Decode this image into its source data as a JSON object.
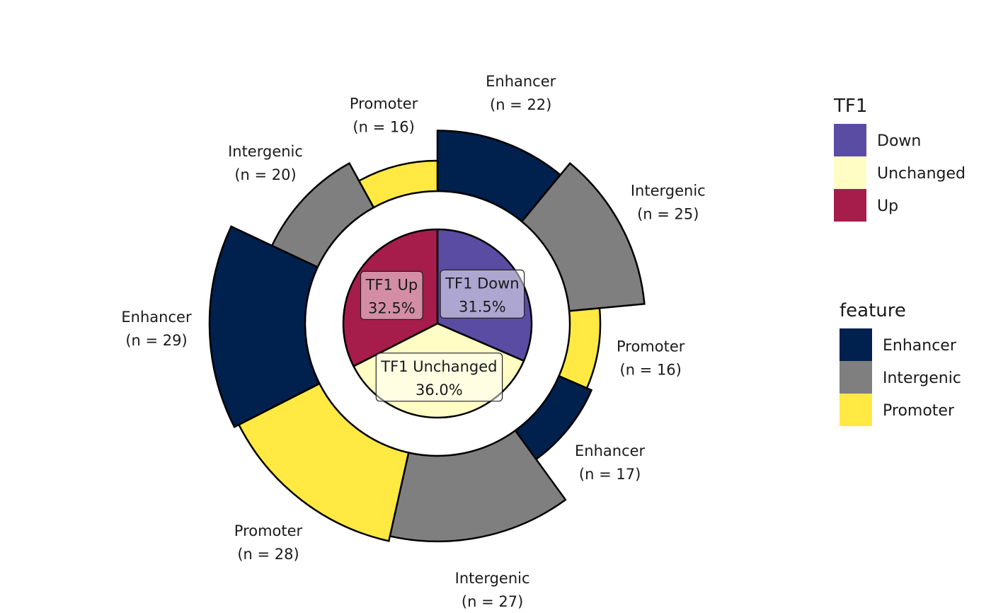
{
  "chart_data": {
    "type": "pie",
    "subtype": "pie-donut",
    "inner": {
      "legend_title": "TF1",
      "categories": [
        {
          "key": "Down",
          "label": "TF1 Down",
          "percent_label": "31.5%",
          "value": 31.5,
          "color": "#5A4CA2"
        },
        {
          "key": "Unchanged",
          "label": "TF1 Unchanged",
          "percent_label": "36.0%",
          "value": 36.0,
          "color": "#FFFDC4"
        },
        {
          "key": "Up",
          "label": "TF1 Up",
          "percent_label": "32.5%",
          "value": 32.5,
          "color": "#A61C4B"
        }
      ]
    },
    "outer": {
      "legend_title": "feature",
      "feature_colors": {
        "Enhancer": "#00204D",
        "Intergenic": "#7F7F7F",
        "Promoter": "#FFE942"
      },
      "segments": [
        {
          "group": "Down",
          "feature": "Enhancer",
          "n": 22,
          "label": "Enhancer",
          "count_label": "(n = 22)"
        },
        {
          "group": "Down",
          "feature": "Intergenic",
          "n": 25,
          "label": "Intergenic",
          "count_label": "(n = 25)"
        },
        {
          "group": "Down",
          "feature": "Promoter",
          "n": 16,
          "label": "Promoter",
          "count_label": "(n = 16)"
        },
        {
          "group": "Unchanged",
          "feature": "Enhancer",
          "n": 17,
          "label": "Enhancer",
          "count_label": "(n = 17)"
        },
        {
          "group": "Unchanged",
          "feature": "Intergenic",
          "n": 27,
          "label": "Intergenic",
          "count_label": "(n = 27)"
        },
        {
          "group": "Unchanged",
          "feature": "Promoter",
          "n": 28,
          "label": "Promoter",
          "count_label": "(n = 28)"
        },
        {
          "group": "Up",
          "feature": "Enhancer",
          "n": 29,
          "label": "Enhancer",
          "count_label": "(n = 29)"
        },
        {
          "group": "Up",
          "feature": "Intergenic",
          "n": 20,
          "label": "Intergenic",
          "count_label": "(n = 20)"
        },
        {
          "group": "Up",
          "feature": "Promoter",
          "n": 16,
          "label": "Promoter",
          "count_label": "(n = 16)"
        }
      ]
    },
    "legends": [
      {
        "title": "TF1",
        "items": [
          {
            "label": "Down",
            "color": "#5A4CA2"
          },
          {
            "label": "Unchanged",
            "color": "#FFFDC4"
          },
          {
            "label": "Up",
            "color": "#A61C4B"
          }
        ]
      },
      {
        "title": "feature",
        "items": [
          {
            "label": "Enhancer",
            "color": "#00204D"
          },
          {
            "label": "Intergenic",
            "color": "#7F7F7F"
          },
          {
            "label": "Promoter",
            "color": "#FFE942"
          }
        ]
      }
    ],
    "legend_position": "right"
  }
}
